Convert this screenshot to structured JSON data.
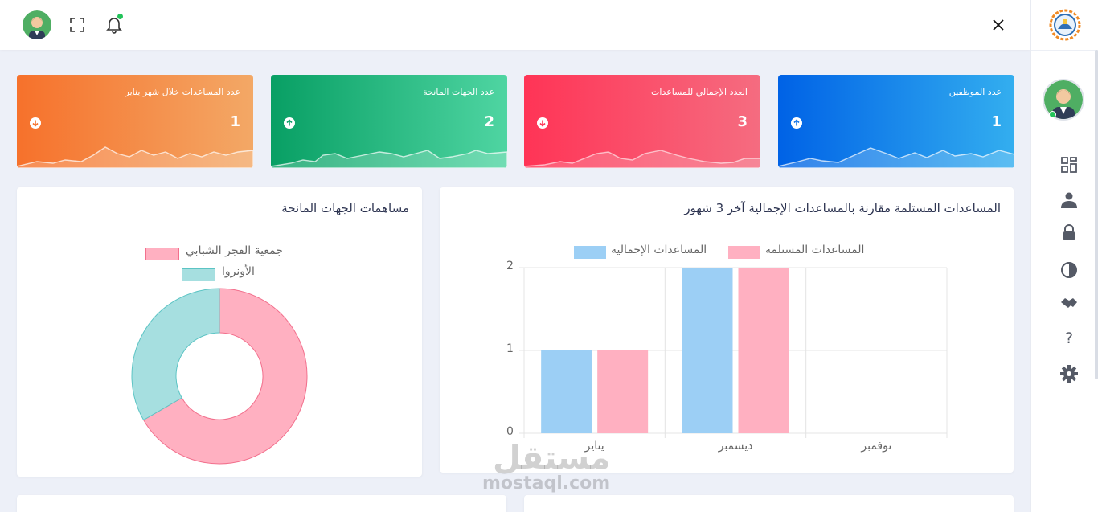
{
  "header": {
    "icons": [
      "avatar",
      "fullscreen-icon",
      "bell-icon",
      "close-icon"
    ],
    "notification_dot_color": "#23c35a"
  },
  "sidebar": {
    "icons": [
      "dashboard-icon",
      "user-icon",
      "lock-icon",
      "pie-icon",
      "handshake-icon",
      "help-icon",
      "gear-icon"
    ],
    "help_glyph": "?"
  },
  "stats": [
    {
      "label": "عدد الموظفين",
      "value": "1",
      "trend": "up"
    },
    {
      "label": "العدد الإجمالي للمساعدات",
      "value": "3",
      "trend": "down"
    },
    {
      "label": "عدد الجهات المانحة",
      "value": "2",
      "trend": "up"
    },
    {
      "label": "عدد المساعدات خلال شهر يناير",
      "value": "1",
      "trend": "down"
    }
  ],
  "bar_panel": {
    "title": "المساعدات المستلمة مقارنة بالمساعدات الإجمالية آخر 3 شهور"
  },
  "donut_panel": {
    "title": "مساهمات الجهات المانحة"
  },
  "watermark": {
    "ar": "مستقل",
    "en": "mostaql.com"
  },
  "chart_data": [
    {
      "type": "bar",
      "categories": [
        "يناير",
        "ديسمبر",
        "نوفمبر"
      ],
      "series": [
        {
          "name": "المساعدات الإجمالية",
          "values": [
            1,
            2,
            0
          ],
          "color": "#9ccff5"
        },
        {
          "name": "المساعدات المستلمة",
          "values": [
            1,
            2,
            0
          ],
          "color": "#ffb0c1"
        }
      ],
      "ylim": [
        0,
        2
      ],
      "yticks": [
        "0",
        "1",
        "2"
      ],
      "grid": true,
      "legend": "top"
    },
    {
      "type": "pie",
      "donut": true,
      "labels": [
        "جمعية الفجر الشبابي",
        "الأونروا"
      ],
      "values": [
        2,
        1
      ],
      "colors": [
        "#ffb0c1",
        "#a6dfe0"
      ],
      "borders": [
        "#f2708d",
        "#5cc4c4"
      ],
      "legend": "top"
    }
  ]
}
